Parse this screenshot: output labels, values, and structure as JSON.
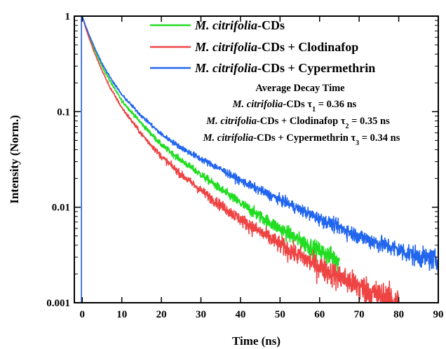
{
  "chart_data": {
    "type": "line",
    "xlabel": "Time (ns)",
    "ylabel": "Intensity (Norm.)",
    "xlim": [
      -2,
      90
    ],
    "ylim": [
      0.001,
      1
    ],
    "yscale": "log",
    "grid": false,
    "legend_position": "top-right",
    "x_ticks": [
      0,
      10,
      20,
      30,
      40,
      50,
      60,
      70,
      80,
      90
    ],
    "x_tick_labels": [
      "0",
      "10",
      "20",
      "30",
      "40",
      "50",
      "60",
      "70",
      "80",
      "90"
    ],
    "y_ticks": [
      1,
      0.1,
      0.01,
      0.001
    ],
    "y_tick_labels": [
      "1",
      "0.1",
      "0.01",
      "0.001"
    ],
    "series": [
      {
        "name_italic": "M. citrifolia",
        "name_rest": "-CDs",
        "color": "#22dd22",
        "x": [
          0,
          1,
          2,
          3,
          5,
          7,
          10,
          15,
          20,
          25,
          30,
          35,
          40,
          45,
          50,
          55,
          60,
          65
        ],
        "y": [
          1.0,
          0.75,
          0.58,
          0.45,
          0.3,
          0.21,
          0.13,
          0.075,
          0.045,
          0.031,
          0.022,
          0.0155,
          0.011,
          0.008,
          0.006,
          0.0045,
          0.0035,
          0.0028
        ]
      },
      {
        "name_italic": "M. citrifolia",
        "name_rest": "-CDs + Clodinafop",
        "color": "#ee4444",
        "x": [
          0,
          1,
          2,
          3,
          5,
          7,
          10,
          15,
          20,
          25,
          30,
          35,
          40,
          45,
          50,
          55,
          60,
          65,
          70,
          75,
          80
        ],
        "y": [
          1.0,
          0.72,
          0.55,
          0.42,
          0.27,
          0.18,
          0.11,
          0.058,
          0.034,
          0.022,
          0.015,
          0.0105,
          0.0075,
          0.0055,
          0.0041,
          0.0031,
          0.0024,
          0.0019,
          0.0015,
          0.0012,
          0.001
        ]
      },
      {
        "name_italic": "M. citrifolia",
        "name_rest": "-CDs + Cypermethrin",
        "color": "#2266ee",
        "x": [
          0,
          1,
          2,
          3,
          5,
          7,
          10,
          15,
          20,
          25,
          30,
          35,
          40,
          45,
          50,
          55,
          60,
          65,
          70,
          75,
          80,
          85,
          90
        ],
        "y": [
          1.0,
          0.76,
          0.6,
          0.48,
          0.32,
          0.23,
          0.15,
          0.09,
          0.058,
          0.042,
          0.032,
          0.025,
          0.019,
          0.015,
          0.012,
          0.0095,
          0.0076,
          0.0062,
          0.005,
          0.0042,
          0.0036,
          0.0031,
          0.0028
        ]
      }
    ],
    "annotation": {
      "title": "Average Decay Time",
      "lines": [
        {
          "italic": "M. citrifolia",
          "pre": "-CDs ",
          "symbol": "τ",
          "sub": "1",
          "post": " = 0.36 ns"
        },
        {
          "italic": "M. citrifolia",
          "pre": "-CDs + Clodinafop ",
          "symbol": "τ",
          "sub": "2",
          "post": " = 0.35 ns"
        },
        {
          "italic": "M. citrifolia",
          "pre": "-CDs + Cypermethrin ",
          "symbol": "τ",
          "sub": "3",
          "post": " = 0.34 ns"
        }
      ]
    }
  }
}
